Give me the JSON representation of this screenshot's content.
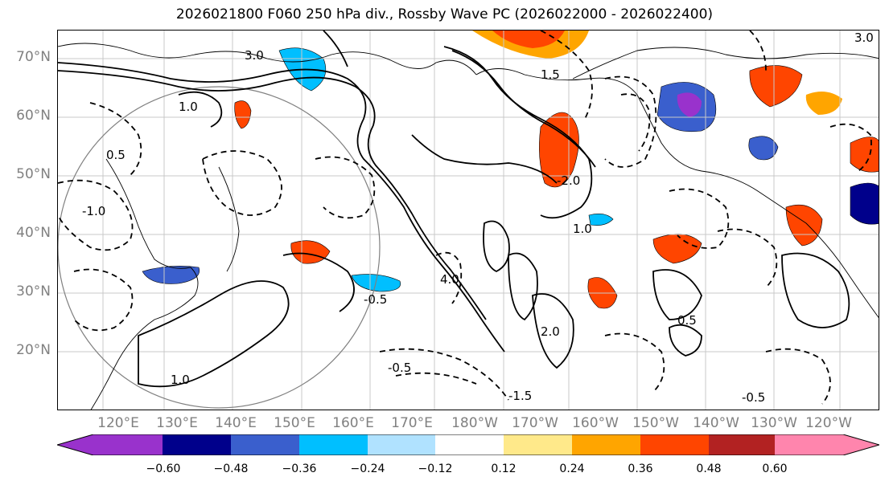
{
  "title": "2026021800 F060 250 hPa div., Rossby Wave PC (2026022000 - 2026022400)",
  "latitude_labels": [
    "70°N",
    "60°N",
    "50°N",
    "40°N",
    "30°N",
    "20°N"
  ],
  "longitude_labels": [
    "120°E",
    "130°E",
    "140°E",
    "150°E",
    "160°E",
    "170°E",
    "180°W",
    "170°W",
    "160°W",
    "150°W",
    "140°W",
    "130°W",
    "120°W"
  ],
  "contour_labels": {
    "positive": [
      "1.0",
      "3.0",
      "0.5",
      "2.0",
      "4.0",
      "1.5"
    ],
    "negative": [
      "-0.5",
      "-1.0",
      "-1.5",
      "-2.0"
    ]
  },
  "colorbar": {
    "tick_labels": [
      "−0.60",
      "−0.48",
      "−0.36",
      "−0.24",
      "−0.12",
      "0.12",
      "0.24",
      "0.36",
      "0.48",
      "0.60"
    ],
    "colors": [
      "#9932cc",
      "#00008b",
      "#3a5fcd",
      "#00bfff",
      "#b0e2ff",
      "#ffffff",
      "#ffe98a",
      "#ffa500",
      "#ff4500",
      "#b22222",
      "#ff85ad"
    ]
  }
}
